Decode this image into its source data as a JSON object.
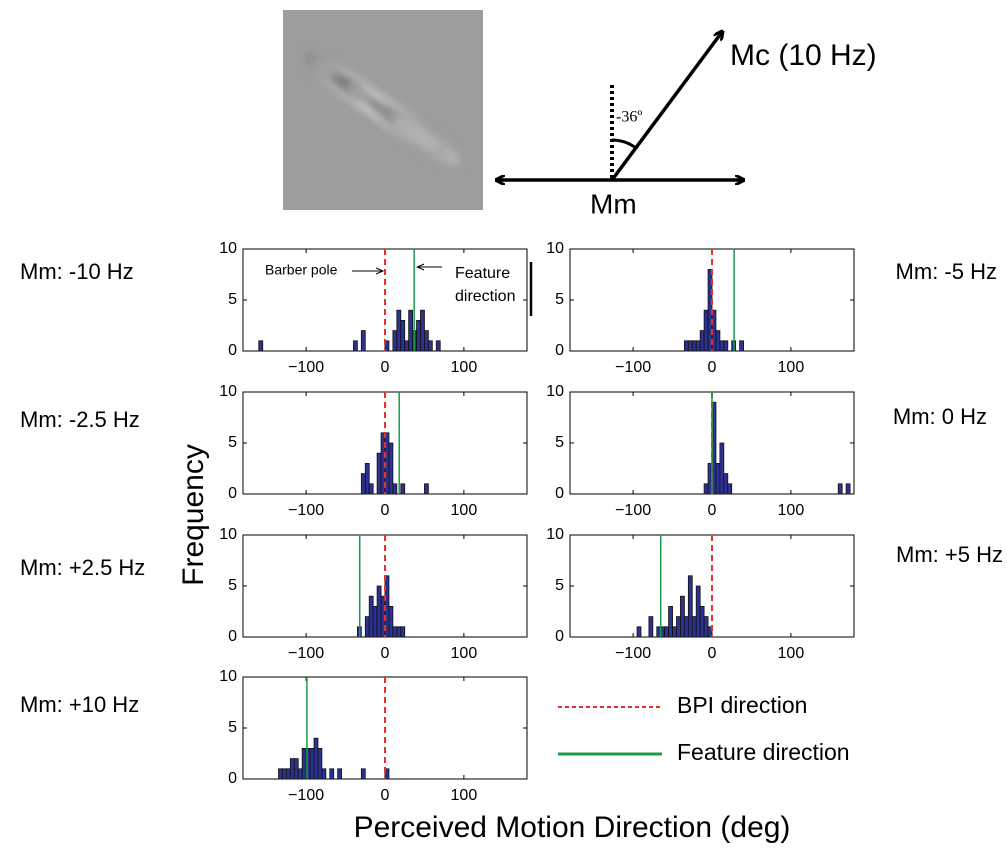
{
  "figure": {
    "diagram": {
      "mc_label": "Mc (10 Hz)",
      "mm_label": "Mm",
      "angle_label": "-36º"
    },
    "ylabel": "Frequency",
    "xlabel": "Perceived Motion Direction (deg)",
    "legend": [
      {
        "name": "BPI direction",
        "color": "#e8302a"
      },
      {
        "name": "Feature direction",
        "color": "#1a9a4a"
      }
    ]
  },
  "chart_data": [
    {
      "type": "histogram",
      "label": "Mm: -10 Hz",
      "color": "#2d3190",
      "bins": [
        -160,
        -155,
        -150,
        -145,
        -140,
        -135,
        -130,
        -125,
        -120,
        -115,
        -110,
        -105,
        -100,
        -95,
        -90,
        -85,
        -80,
        -75,
        -70,
        -65,
        -60,
        -55,
        -50,
        -45,
        -40,
        -35,
        -30,
        -25,
        -20,
        -15,
        -10,
        -5,
        0,
        5,
        10,
        15,
        20,
        25,
        30,
        35,
        40,
        45,
        50,
        55,
        60,
        65,
        70,
        75
      ],
      "values": [
        1,
        0,
        0,
        0,
        0,
        0,
        0,
        0,
        0,
        0,
        0,
        0,
        0,
        0,
        0,
        0,
        0,
        0,
        0,
        0,
        0,
        0,
        0,
        0,
        1,
        0,
        2,
        0,
        0,
        0,
        0,
        0,
        1,
        0,
        2,
        4,
        3,
        1,
        4,
        2,
        3,
        4,
        2,
        1,
        0,
        1,
        0
      ],
      "bpi_direction": 0,
      "feature_direction": 37,
      "annotations": [
        "Barber pole",
        "Feature",
        "direction"
      ],
      "xlim": [
        -180,
        180
      ],
      "ylim": [
        0,
        10
      ],
      "xticks": [
        {
          "value": -100,
          "label": "−100"
        },
        0,
        100
      ],
      "yticks": [
        0,
        5,
        10
      ]
    },
    {
      "type": "histogram",
      "label": "Mm: -5 Hz",
      "color": "#2d3190",
      "bins": [
        -35,
        -30,
        -25,
        -20,
        -15,
        -10,
        -5,
        0,
        5,
        10,
        15,
        20,
        25,
        30,
        35,
        40
      ],
      "values": [
        1,
        1,
        1,
        1,
        2,
        4,
        8,
        4,
        2,
        1,
        1,
        0,
        1,
        0,
        1
      ],
      "bpi_direction": 0,
      "feature_direction": 28,
      "xlim": [
        -180,
        180
      ],
      "ylim": [
        0,
        10
      ],
      "xticks": [
        {
          "value": -100,
          "label": "−100"
        },
        0,
        100
      ],
      "yticks": [
        0,
        5,
        10
      ]
    },
    {
      "type": "histogram",
      "label": "Mm: -2.5 Hz",
      "color": "#2d3190",
      "bins": [
        -30,
        -25,
        -20,
        -15,
        -10,
        -5,
        0,
        5,
        10,
        15,
        20,
        25,
        30,
        35,
        40,
        45,
        50,
        55
      ],
      "values": [
        2,
        3,
        1,
        0,
        4,
        6,
        6,
        5,
        1,
        0,
        1,
        0,
        0,
        0,
        0,
        0,
        1
      ],
      "bpi_direction": 0,
      "feature_direction": 18,
      "xlim": [
        -180,
        180
      ],
      "ylim": [
        0,
        10
      ],
      "xticks": [
        {
          "value": -100,
          "label": "−100"
        },
        0,
        100
      ],
      "yticks": [
        0,
        5,
        10
      ]
    },
    {
      "type": "histogram",
      "label": "Mm: 0 Hz",
      "color": "#2d3190",
      "bins": [
        -10,
        -5,
        0,
        5,
        10,
        15,
        20,
        25,
        30,
        35,
        40,
        45,
        50,
        55,
        60,
        65,
        70,
        75,
        80,
        85,
        90,
        95,
        100,
        105,
        110,
        115,
        120,
        125,
        130,
        135,
        140,
        145,
        150,
        155,
        160,
        165,
        170,
        175,
        180
      ],
      "values": [
        1,
        3,
        9,
        3,
        5,
        2,
        1,
        0,
        0,
        0,
        0,
        0,
        0,
        0,
        0,
        0,
        0,
        0,
        0,
        0,
        0,
        0,
        0,
        0,
        0,
        0,
        0,
        0,
        0,
        0,
        0,
        0,
        0,
        0,
        1,
        0,
        1,
        0
      ],
      "bpi_direction": 0,
      "feature_direction": 0,
      "xlim": [
        -180,
        180
      ],
      "ylim": [
        0,
        10
      ],
      "xticks": [
        {
          "value": -100,
          "label": "−100"
        },
        0,
        100
      ],
      "yticks": [
        0,
        5,
        10
      ]
    },
    {
      "type": "histogram",
      "label": "Mm: +2.5 Hz",
      "color": "#2d3190",
      "bins": [
        -35,
        -30,
        -25,
        -20,
        -15,
        -10,
        -5,
        0,
        5,
        10,
        15,
        20,
        25
      ],
      "values": [
        1,
        0,
        2,
        4,
        3,
        5,
        4,
        6,
        3,
        1,
        1,
        1
      ],
      "bpi_direction": 0,
      "feature_direction": -32,
      "xlim": [
        -180,
        180
      ],
      "ylim": [
        0,
        10
      ],
      "xticks": [
        {
          "value": -100,
          "label": "−100"
        },
        0,
        100
      ],
      "yticks": [
        0,
        5,
        10
      ]
    },
    {
      "type": "histogram",
      "label": "Mm: +5 Hz",
      "color": "#2d3190",
      "bins": [
        -95,
        -90,
        -85,
        -80,
        -75,
        -70,
        -65,
        -60,
        -55,
        -50,
        -45,
        -40,
        -35,
        -30,
        -25,
        -20,
        -15,
        -10,
        -5,
        0
      ],
      "values": [
        1,
        0,
        0,
        2,
        0,
        1,
        1,
        1,
        3,
        1,
        2,
        4,
        2,
        6,
        2,
        5,
        3,
        2,
        1
      ],
      "bpi_direction": 0,
      "feature_direction": -65,
      "xlim": [
        -180,
        180
      ],
      "ylim": [
        0,
        10
      ],
      "xticks": [
        {
          "value": -100,
          "label": "−100"
        },
        0,
        100
      ],
      "yticks": [
        0,
        5,
        10
      ]
    },
    {
      "type": "histogram",
      "label": "Mm: +10 Hz",
      "color": "#2d3190",
      "bins": [
        -135,
        -130,
        -125,
        -120,
        -115,
        -110,
        -105,
        -100,
        -95,
        -90,
        -85,
        -80,
        -75,
        -70,
        -65,
        -60,
        -55,
        -50,
        -45,
        -40,
        -35,
        -30,
        -25,
        -20,
        -15,
        -10,
        -5,
        0,
        5
      ],
      "values": [
        1,
        1,
        1,
        2,
        2,
        1,
        3,
        3,
        3,
        4,
        3,
        1,
        0,
        1,
        0,
        1,
        0,
        0,
        0,
        0,
        0,
        1,
        0,
        0,
        0,
        0,
        0,
        1
      ],
      "bpi_direction": 0,
      "feature_direction": -99,
      "xlim": [
        -180,
        180
      ],
      "ylim": [
        0,
        10
      ],
      "xticks": [
        {
          "value": -100,
          "label": "−100"
        },
        0,
        100
      ],
      "yticks": [
        0,
        5,
        10
      ]
    }
  ]
}
